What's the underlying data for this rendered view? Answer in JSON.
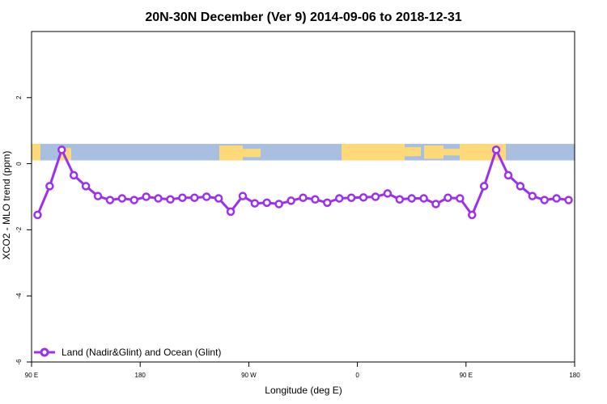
{
  "chart_data": {
    "type": "line",
    "title": "20N-30N December (Ver 9)   2014-09-06 to 2018-12-31",
    "xlabel": "Longitude (deg E)",
    "ylabel": "XCO2 - MLO trend (ppm)",
    "xlim": [
      90,
      540
    ],
    "ylim": [
      -6,
      4
    ],
    "x_ticks": [
      {
        "value": 90,
        "label": "90 E"
      },
      {
        "value": 180,
        "label": "180"
      },
      {
        "value": 270,
        "label": "90 W"
      },
      {
        "value": 360,
        "label": "0"
      },
      {
        "value": 450,
        "label": "90 E"
      },
      {
        "value": 540,
        "label": "180"
      }
    ],
    "y_ticks": [
      {
        "value": -6,
        "label": "-6"
      },
      {
        "value": -4,
        "label": "-4"
      },
      {
        "value": -2,
        "label": "-2"
      },
      {
        "value": 0,
        "label": "0"
      },
      {
        "value": 2,
        "label": "2"
      }
    ],
    "grid": false,
    "legend_position": "bottom-left",
    "series": [
      {
        "name": "Land (Nadir&Glint) and Ocean (Glint)",
        "color": "#9b30f0",
        "x": [
          95,
          105,
          115,
          125,
          135,
          145,
          155,
          165,
          175,
          185,
          195,
          205,
          215,
          225,
          235,
          245,
          255,
          265,
          275,
          285,
          295,
          305,
          315,
          325,
          335,
          345,
          355,
          365,
          375,
          385,
          395,
          405,
          415,
          425,
          435,
          445,
          455,
          465,
          475,
          485,
          495,
          505,
          515,
          525,
          535
        ],
        "y": [
          -1.55,
          -0.68,
          0.42,
          -0.35,
          -0.68,
          -0.98,
          -1.1,
          -1.05,
          -1.1,
          -1.0,
          -1.05,
          -1.08,
          -1.03,
          -1.03,
          -1.0,
          -1.05,
          -1.45,
          -0.98,
          -1.2,
          -1.18,
          -1.22,
          -1.12,
          -1.03,
          -1.08,
          -1.18,
          -1.05,
          -1.03,
          -1.02,
          -1.0,
          -0.9,
          -1.08,
          -1.05,
          -1.05,
          -1.22,
          -1.03,
          -1.05,
          -1.55,
          -0.68,
          0.42,
          -0.35,
          -0.68,
          -0.98,
          -1.1,
          -1.05,
          -1.1
        ]
      }
    ]
  },
  "map_strip": {
    "y_range": [
      0.1,
      0.6
    ],
    "ocean_color": "#a8bfe0",
    "land_color": "#fdd97a"
  }
}
